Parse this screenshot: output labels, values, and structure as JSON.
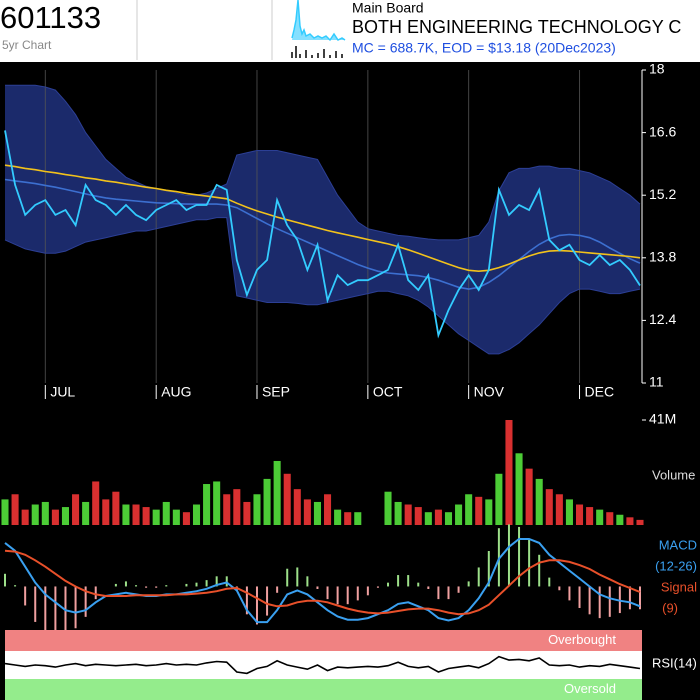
{
  "header": {
    "code": "601133",
    "subtitle": "5yr Chart",
    "board": "Main Board",
    "name": "BOTH ENGINEERING TECHNOLOGY C",
    "summary": "MC = 688.7K, EOD = $13.18 (20Dec2023)"
  },
  "chart_data": [
    {
      "type": "price",
      "xlim": [
        0,
        63
      ],
      "xticks": [
        {
          "value": 4,
          "label": "JUL"
        },
        {
          "value": 15,
          "label": "AUG"
        },
        {
          "value": 25,
          "label": "SEP"
        },
        {
          "value": 36,
          "label": "OCT"
        },
        {
          "value": 46,
          "label": "NOV"
        },
        {
          "value": 57,
          "label": "DEC"
        }
      ],
      "ylim": [
        11,
        18
      ],
      "yticks": [
        18,
        16.6,
        15.2,
        13.8,
        12.4,
        11
      ],
      "grid": true,
      "band": {
        "color": "#1b2a6b",
        "upper": [
          17.66,
          17.66,
          17.66,
          17.66,
          17.62,
          17.55,
          17.3,
          17.0,
          16.6,
          16.3,
          16.0,
          15.8,
          15.6,
          15.5,
          15.4,
          15.35,
          15.3,
          15.25,
          15.2,
          15.2,
          15.25,
          15.35,
          15.45,
          16.1,
          16.15,
          16.2,
          16.2,
          16.2,
          16.15,
          16.1,
          16.05,
          16.0,
          15.6,
          15.2,
          14.9,
          14.6,
          14.45,
          14.4,
          14.35,
          14.3,
          14.28,
          14.25,
          14.22,
          14.2,
          14.2,
          14.2,
          14.25,
          14.3,
          14.6,
          15.3,
          15.7,
          15.8,
          15.8,
          15.85,
          15.85,
          15.8,
          15.8,
          15.75,
          15.7,
          15.6,
          15.5,
          15.35,
          15.2,
          15.0
        ],
        "lower": [
          14.2,
          14.1,
          14.0,
          13.95,
          13.9,
          13.9,
          13.95,
          14.05,
          14.15,
          14.2,
          14.25,
          14.3,
          14.35,
          14.4,
          14.4,
          14.45,
          14.5,
          14.55,
          14.6,
          14.65,
          14.65,
          14.7,
          14.7,
          12.95,
          12.9,
          12.85,
          12.8,
          12.8,
          12.8,
          12.78,
          12.75,
          12.75,
          12.8,
          12.85,
          12.9,
          12.95,
          13.0,
          13.05,
          13.05,
          13.0,
          12.95,
          12.85,
          12.7,
          12.5,
          12.3,
          12.1,
          11.95,
          11.8,
          11.65,
          11.65,
          11.75,
          11.9,
          12.1,
          12.3,
          12.55,
          12.8,
          13.0,
          13.1,
          13.1,
          13.05,
          13.0,
          13.0,
          13.05,
          13.1
        ]
      },
      "series": [
        {
          "color": "#3c6fd0",
          "values": [
            15.55,
            15.52,
            15.49,
            15.46,
            15.42,
            15.38,
            15.33,
            15.28,
            15.23,
            15.18,
            15.14,
            15.11,
            15.09,
            15.07,
            15.05,
            15.03,
            15.02,
            15.01,
            15.0,
            15.0,
            15.0,
            15.0,
            14.98,
            14.92,
            14.8,
            14.68,
            14.56,
            14.45,
            14.35,
            14.25,
            14.15,
            14.05,
            13.95,
            13.85,
            13.75,
            13.65,
            13.57,
            13.5,
            13.46,
            13.44,
            13.42,
            13.4,
            13.36,
            13.3,
            13.22,
            13.14,
            13.1,
            13.14,
            13.25,
            13.4,
            13.58,
            13.76,
            13.94,
            14.1,
            14.22,
            14.3,
            14.32,
            14.3,
            14.25,
            14.15,
            14.02,
            13.9,
            13.78,
            13.68
          ]
        },
        {
          "color": "#f2c21b",
          "values": [
            15.87,
            15.84,
            15.8,
            15.77,
            15.73,
            15.7,
            15.66,
            15.63,
            15.59,
            15.56,
            15.52,
            15.49,
            15.45,
            15.42,
            15.38,
            15.35,
            15.31,
            15.28,
            15.24,
            15.21,
            15.18,
            15.15,
            15.12,
            15.02,
            14.93,
            14.85,
            14.78,
            14.71,
            14.65,
            14.59,
            14.53,
            14.47,
            14.41,
            14.36,
            14.31,
            14.26,
            14.21,
            14.16,
            14.11,
            14.05,
            13.98,
            13.9,
            13.82,
            13.74,
            13.66,
            13.58,
            13.52,
            13.5,
            13.52,
            13.58,
            13.66,
            13.75,
            13.84,
            13.91,
            13.95,
            13.96,
            13.95,
            13.93,
            13.91,
            13.89,
            13.87,
            13.85,
            13.83,
            13.8
          ]
        },
        {
          "color": "#33ccff",
          "values": [
            16.65,
            15.43,
            14.76,
            14.98,
            15.09,
            14.76,
            14.87,
            14.53,
            15.43,
            15.09,
            14.98,
            14.76,
            14.98,
            14.76,
            14.64,
            14.87,
            14.98,
            15.09,
            14.87,
            14.98,
            14.98,
            15.43,
            15.32,
            13.75,
            12.97,
            13.53,
            13.75,
            15.09,
            14.53,
            14.2,
            13.53,
            14.09,
            12.85,
            13.41,
            13.19,
            13.3,
            13.3,
            13.41,
            13.53,
            14.09,
            13.3,
            13.08,
            13.41,
            12.07,
            12.63,
            13.08,
            13.41,
            13.08,
            13.53,
            15.32,
            14.76,
            14.98,
            14.87,
            15.32,
            14.2,
            13.97,
            14.09,
            13.75,
            13.64,
            13.86,
            13.64,
            13.75,
            13.53,
            13.18
          ]
        }
      ]
    },
    {
      "type": "volume",
      "ylabel": "Volume",
      "ylim": [
        0,
        41
      ],
      "yticks": [
        {
          "value": 41,
          "label": "41M"
        }
      ],
      "up_color": "#4ccc36",
      "down_color": "#d93030",
      "values": [
        10,
        12,
        6,
        8,
        9,
        6,
        7,
        12,
        9,
        17,
        10,
        13,
        8,
        8,
        7,
        6,
        9,
        6,
        5,
        8,
        16,
        17,
        12,
        14,
        9,
        12,
        18,
        25,
        20,
        14,
        10,
        9,
        12,
        6,
        5,
        5,
        null,
        null,
        13,
        9,
        8,
        7,
        5,
        6,
        5,
        8,
        12,
        11,
        10,
        20,
        41,
        28,
        22,
        18,
        14,
        12,
        10,
        8,
        7,
        6,
        5,
        4,
        3,
        2
      ]
    },
    {
      "type": "macd",
      "ylim": [
        -0.55,
        0.65
      ],
      "hist_up": "#9de08a",
      "hist_down": "#f0a0a0",
      "series": [
        {
          "name": "MACD",
          "params": "(12-26)",
          "color": "#3aa0f0",
          "values": [
            0.55,
            0.45,
            0.25,
            0.05,
            -0.1,
            -0.2,
            -0.3,
            -0.33,
            -0.3,
            -0.2,
            -0.12,
            -0.1,
            -0.08,
            -0.1,
            -0.12,
            -0.12,
            -0.1,
            -0.1,
            -0.08,
            -0.06,
            -0.03,
            0.02,
            0.05,
            -0.05,
            -0.3,
            -0.45,
            -0.45,
            -0.3,
            -0.1,
            -0.05,
            -0.1,
            -0.2,
            -0.3,
            -0.38,
            -0.42,
            -0.42,
            -0.4,
            -0.35,
            -0.3,
            -0.22,
            -0.2,
            -0.25,
            -0.3,
            -0.4,
            -0.43,
            -0.4,
            -0.3,
            -0.15,
            0.05,
            0.35,
            0.5,
            0.6,
            0.6,
            0.55,
            0.4,
            0.3,
            0.2,
            0.1,
            0.0,
            -0.1,
            -0.15,
            -0.18,
            -0.2,
            -0.25
          ]
        },
        {
          "name": "Signal",
          "params": "(9)",
          "color": "#e8502a",
          "values": [
            0.45,
            0.44,
            0.4,
            0.33,
            0.25,
            0.16,
            0.07,
            0.0,
            -0.06,
            -0.1,
            -0.12,
            -0.12,
            -0.12,
            -0.11,
            -0.11,
            -0.11,
            -0.11,
            -0.1,
            -0.1,
            -0.09,
            -0.08,
            -0.06,
            -0.03,
            -0.02,
            -0.08,
            -0.15,
            -0.22,
            -0.25,
            -0.24,
            -0.2,
            -0.18,
            -0.18,
            -0.2,
            -0.24,
            -0.28,
            -0.31,
            -0.33,
            -0.34,
            -0.33,
            -0.31,
            -0.29,
            -0.28,
            -0.28,
            -0.3,
            -0.33,
            -0.35,
            -0.34,
            -0.3,
            -0.23,
            -0.11,
            0.01,
            0.13,
            0.23,
            0.3,
            0.33,
            0.33,
            0.31,
            0.27,
            0.22,
            0.15,
            0.09,
            0.03,
            -0.02,
            -0.07
          ]
        }
      ]
    },
    {
      "type": "rsi",
      "label": "RSI(14)",
      "ylim": [
        0,
        100
      ],
      "color": "#000000",
      "overbought": {
        "level": 70,
        "label": "Overbought",
        "color": "#f08282"
      },
      "oversold": {
        "level": 30,
        "label": "Oversold",
        "color": "#94ec8c"
      },
      "values": [
        52,
        50,
        48,
        50,
        49,
        47,
        50,
        52,
        49,
        51,
        50,
        49,
        50,
        51,
        49,
        50,
        52,
        50,
        51,
        50,
        53,
        55,
        54,
        40,
        38,
        45,
        48,
        56,
        50,
        47,
        44,
        50,
        42,
        47,
        46,
        47,
        48,
        47,
        49,
        54,
        48,
        46,
        48,
        40,
        45,
        47,
        49,
        46,
        52,
        62,
        57,
        58,
        56,
        60,
        50,
        49,
        50,
        47,
        49,
        48,
        51,
        49,
        47,
        45
      ]
    }
  ]
}
